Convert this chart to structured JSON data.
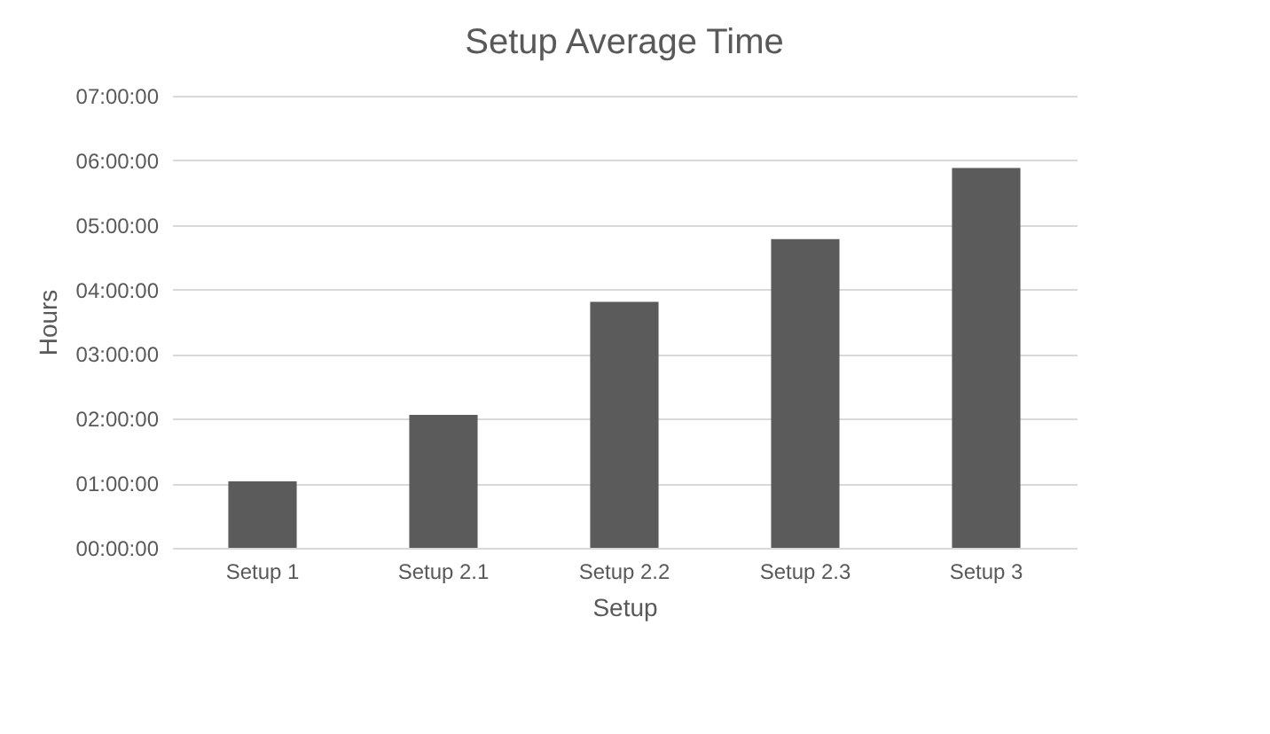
{
  "chart_data": {
    "type": "bar",
    "title": "Setup Average Time",
    "xlabel": "Setup",
    "ylabel": "Hours",
    "categories": [
      "Setup 1",
      "Setup 2.1",
      "Setup 2.2",
      "Setup 2.3",
      "Setup 3"
    ],
    "values": [
      1.03,
      2.06,
      3.81,
      4.78,
      5.88
    ],
    "color": "#5b5b5b",
    "ylim": [
      0,
      7
    ],
    "yticks": [
      {
        "value": 0,
        "label": "00:00:00"
      },
      {
        "value": 1,
        "label": "01:00:00"
      },
      {
        "value": 2,
        "label": "02:00:00"
      },
      {
        "value": 3,
        "label": "03:00:00"
      },
      {
        "value": 4,
        "label": "04:00:00"
      },
      {
        "value": 5,
        "label": "05:00:00"
      },
      {
        "value": 6,
        "label": "06:00:00"
      },
      {
        "value": 7,
        "label": "07:00:00"
      }
    ],
    "grid": "y"
  }
}
